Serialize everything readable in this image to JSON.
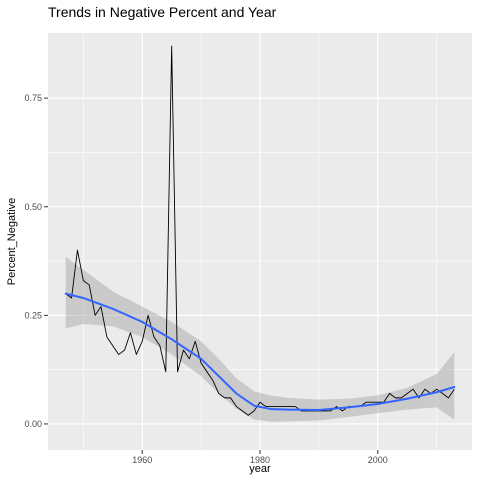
{
  "chart_data": {
    "type": "line",
    "title": "Trends in Negative Percent and Year",
    "xlabel": "year",
    "ylabel": "Percent_Negative",
    "xlim": [
      1944,
      2016
    ],
    "ylim": [
      -0.06,
      0.9
    ],
    "x_ticks": [
      1960,
      1980,
      2000
    ],
    "x_tick_labels": [
      "1960",
      "1980",
      "2000"
    ],
    "y_ticks": [
      0,
      0.25,
      0.5,
      0.75
    ],
    "y_tick_labels": [
      "0.00",
      "0.25",
      "0.50",
      "0.75"
    ],
    "x_minor_ticks": [
      1950,
      1970,
      1990,
      2010
    ],
    "y_minor_ticks": [
      0.125,
      0.375,
      0.625
    ],
    "grid": true,
    "legend": "none",
    "colors": {
      "panel": "#ebebeb",
      "grid": "#ffffff",
      "raw_line": "#000000",
      "smooth_line": "#3366ff",
      "ribbon": "#999999"
    },
    "series": [
      {
        "kind": "raw",
        "x": [
          1947,
          1948,
          1949,
          1950,
          1951,
          1952,
          1953,
          1954,
          1955,
          1956,
          1957,
          1958,
          1959,
          1960,
          1961,
          1962,
          1963,
          1964,
          1965,
          1966,
          1967,
          1968,
          1969,
          1970,
          1971,
          1972,
          1973,
          1974,
          1975,
          1976,
          1977,
          1978,
          1979,
          1980,
          1981,
          1982,
          1983,
          1984,
          1985,
          1986,
          1987,
          1988,
          1989,
          1990,
          1991,
          1992,
          1993,
          1994,
          1995,
          1996,
          1997,
          1998,
          1999,
          2000,
          2001,
          2002,
          2003,
          2004,
          2005,
          2006,
          2007,
          2008,
          2009,
          2010,
          2011,
          2012,
          2013
        ],
        "y": [
          0.3,
          0.29,
          0.4,
          0.33,
          0.32,
          0.25,
          0.27,
          0.2,
          0.18,
          0.16,
          0.17,
          0.21,
          0.16,
          0.19,
          0.25,
          0.2,
          0.18,
          0.12,
          0.87,
          0.12,
          0.17,
          0.15,
          0.19,
          0.14,
          0.12,
          0.1,
          0.07,
          0.06,
          0.06,
          0.04,
          0.03,
          0.02,
          0.03,
          0.05,
          0.04,
          0.04,
          0.04,
          0.04,
          0.04,
          0.04,
          0.03,
          0.03,
          0.03,
          0.03,
          0.03,
          0.03,
          0.04,
          0.03,
          0.04,
          0.04,
          0.04,
          0.05,
          0.05,
          0.05,
          0.05,
          0.07,
          0.06,
          0.06,
          0.07,
          0.08,
          0.06,
          0.08,
          0.07,
          0.08,
          0.07,
          0.06,
          0.08
        ]
      },
      {
        "kind": "smooth",
        "x": [
          1947,
          1950,
          1955,
          1960,
          1965,
          1970,
          1973,
          1976,
          1979,
          1982,
          1985,
          1990,
          1995,
          2000,
          2005,
          2010,
          2013
        ],
        "y": [
          0.3,
          0.29,
          0.265,
          0.235,
          0.195,
          0.15,
          0.11,
          0.07,
          0.042,
          0.034,
          0.033,
          0.032,
          0.038,
          0.046,
          0.058,
          0.073,
          0.085
        ],
        "lower": [
          0.22,
          0.23,
          0.225,
          0.2,
          0.16,
          0.11,
          0.07,
          0.035,
          0.01,
          0.005,
          0.006,
          0.008,
          0.016,
          0.025,
          0.033,
          0.038,
          0.01
        ],
        "upper": [
          0.385,
          0.355,
          0.305,
          0.27,
          0.235,
          0.19,
          0.15,
          0.105,
          0.075,
          0.065,
          0.06,
          0.056,
          0.058,
          0.066,
          0.083,
          0.115,
          0.165
        ]
      }
    ]
  }
}
